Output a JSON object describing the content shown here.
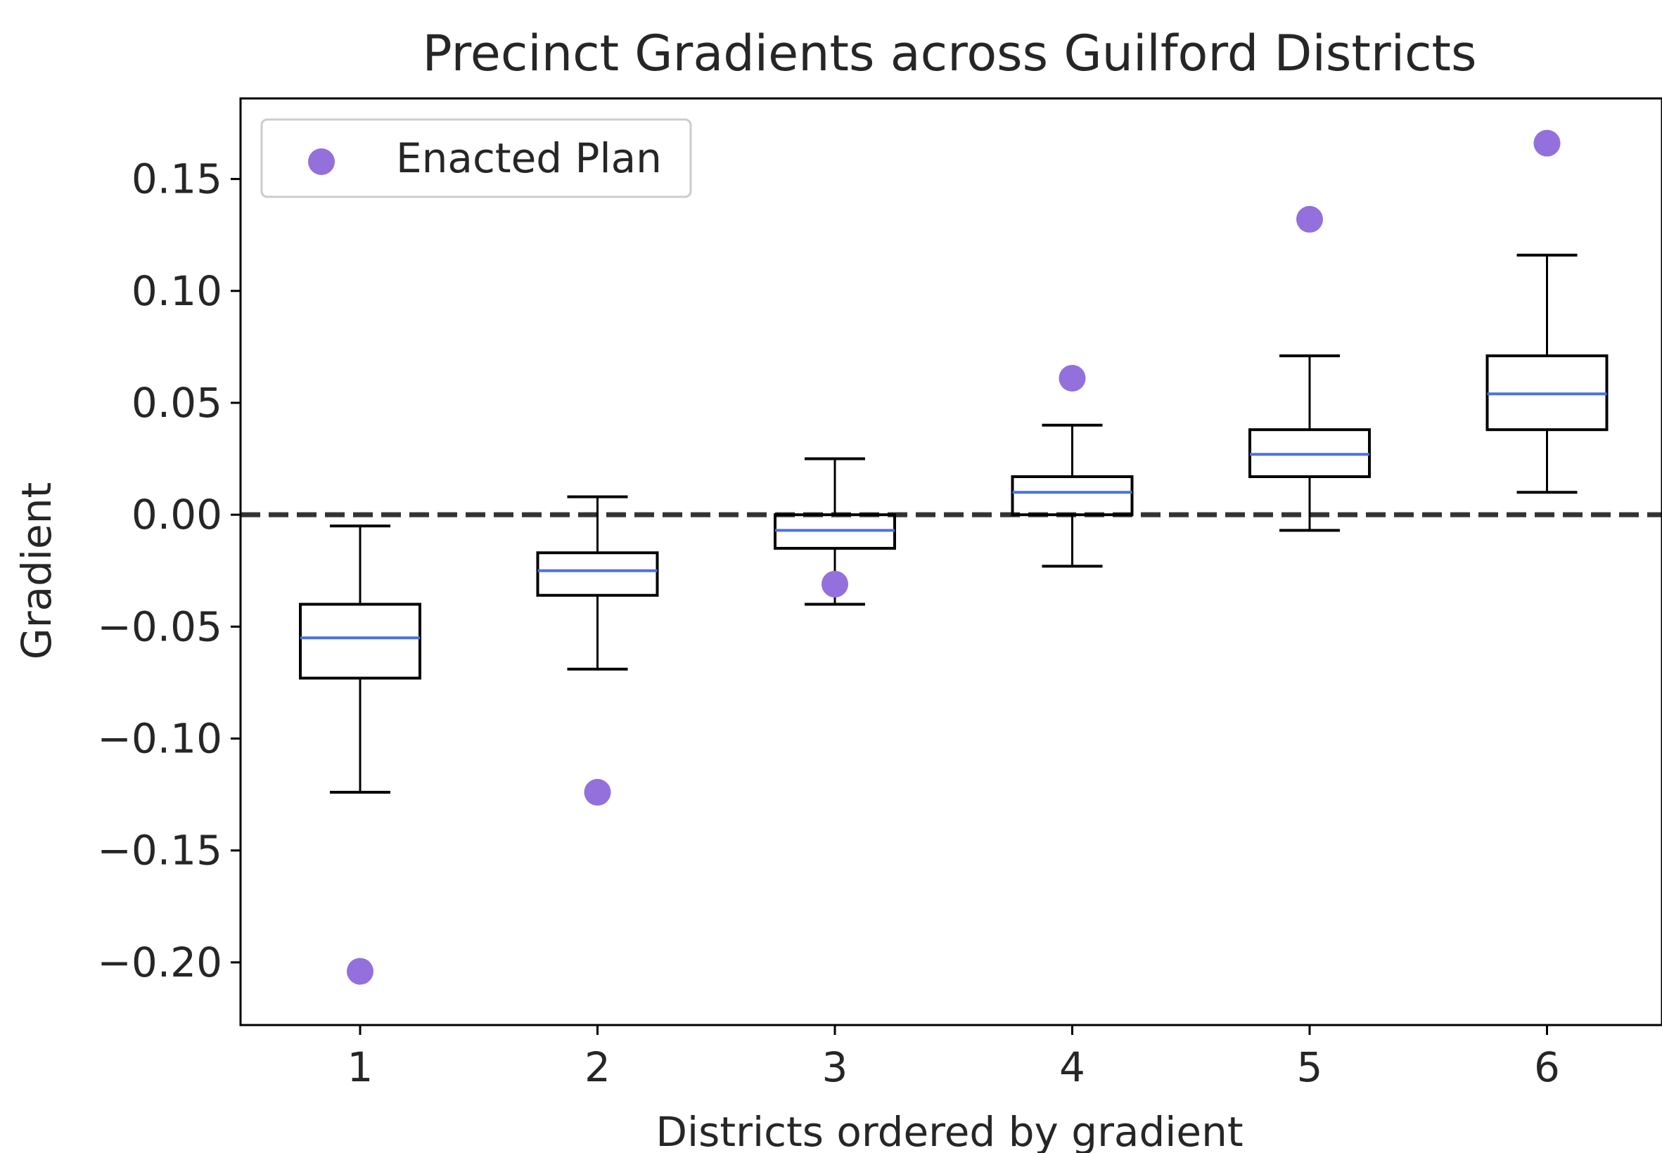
{
  "chart_data": {
    "type": "box",
    "title": "Precinct Gradients across Guilford Districts",
    "xlabel": "Districts ordered by gradient",
    "ylabel": "Gradient",
    "ylim": [
      -0.228,
      0.186
    ],
    "yticks": [
      -0.2,
      -0.15,
      -0.1,
      -0.05,
      0.0,
      0.05,
      0.1,
      0.15
    ],
    "ytick_labels": [
      "−0.20",
      "−0.15",
      "−0.10",
      "−0.05",
      "0.00",
      "0.05",
      "0.10",
      "0.15"
    ],
    "categories": [
      "1",
      "2",
      "3",
      "4",
      "5",
      "6"
    ],
    "reference_line": {
      "y": 0.0,
      "style": "dashed"
    },
    "legend": {
      "location": "upper-left",
      "label": "Enacted Plan"
    },
    "grid": false,
    "boxes": [
      {
        "district": "1",
        "whisker_low": -0.124,
        "q1": -0.073,
        "median": -0.055,
        "q3": -0.04,
        "whisker_high": -0.005
      },
      {
        "district": "2",
        "whisker_low": -0.069,
        "q1": -0.036,
        "median": -0.025,
        "q3": -0.017,
        "whisker_high": 0.008
      },
      {
        "district": "3",
        "whisker_low": -0.04,
        "q1": -0.015,
        "median": -0.007,
        "q3": 0.0,
        "whisker_high": 0.025
      },
      {
        "district": "4",
        "whisker_low": -0.023,
        "q1": 0.0,
        "median": 0.01,
        "q3": 0.017,
        "whisker_high": 0.04
      },
      {
        "district": "5",
        "whisker_low": -0.007,
        "q1": 0.017,
        "median": 0.027,
        "q3": 0.038,
        "whisker_high": 0.071
      },
      {
        "district": "6",
        "whisker_low": 0.01,
        "q1": 0.038,
        "median": 0.054,
        "q3": 0.071,
        "whisker_high": 0.116
      }
    ],
    "enacted_plan": {
      "name": "Enacted Plan",
      "values": [
        -0.204,
        -0.124,
        -0.031,
        0.061,
        0.132,
        0.166
      ]
    },
    "colors": {
      "median": "#4c72e0",
      "enacted": "#9370db",
      "box": "#000000",
      "refline": "#333333"
    }
  }
}
